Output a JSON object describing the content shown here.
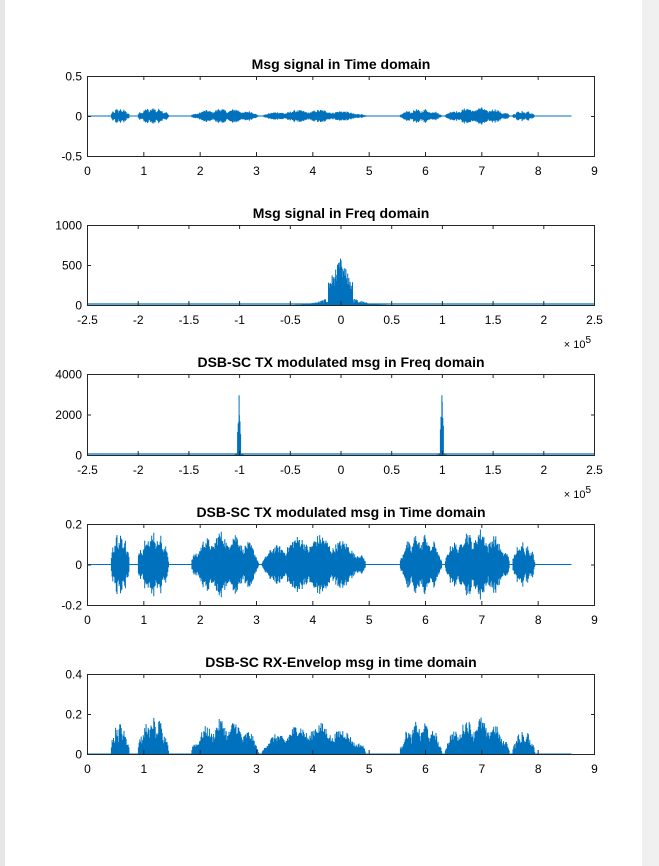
{
  "style": {
    "trace_color": "#0072bd",
    "axes_color": "#262626"
  },
  "chart_data": [
    {
      "type": "line",
      "title": "Msg signal in Time domain",
      "xlim": [
        0,
        9
      ],
      "ylim": [
        -0.5,
        0.5
      ],
      "xticks": [
        "0",
        "1",
        "2",
        "3",
        "4",
        "5",
        "6",
        "7",
        "8",
        "9"
      ],
      "yticks": [
        "-0.5",
        "0",
        "0.5"
      ],
      "x_multiplier": "",
      "signal": {
        "kind": "envelope_bipolar",
        "x_end": 8.6,
        "segments": [
          {
            "x": [
              0.42,
              0.75
            ],
            "amp": 0.1
          },
          {
            "x": [
              0.9,
              1.45
            ],
            "amp": 0.11
          },
          {
            "x": [
              1.85,
              3.05
            ],
            "amp": 0.095
          },
          {
            "x": [
              3.1,
              4.95
            ],
            "amp": 0.08
          },
          {
            "x": [
              5.55,
              6.3
            ],
            "amp": 0.09
          },
          {
            "x": [
              6.35,
              7.5
            ],
            "amp": 0.11
          },
          {
            "x": [
              7.55,
              7.95
            ],
            "amp": 0.07
          }
        ]
      }
    },
    {
      "type": "line",
      "title": "Msg signal in Freq domain",
      "xlim": [
        -2.5,
        2.5
      ],
      "ylim": [
        0,
        1000
      ],
      "xticks": [
        "-2.5",
        "-2",
        "-1.5",
        "-1",
        "-0.5",
        "0",
        "0.5",
        "1",
        "1.5",
        "2",
        "2.5"
      ],
      "yticks": [
        "0",
        "500",
        "1000"
      ],
      "x_multiplier": "× 10",
      "x_exponent": "5",
      "signal": {
        "kind": "spectrum",
        "lines": [
          {
            "center": 0.0,
            "peak": 580,
            "width": 0.12,
            "base": 120,
            "spread": 0.45
          }
        ]
      }
    },
    {
      "type": "line",
      "title": "DSB-SC TX modulated msg in Freq domain",
      "xlim": [
        -2.5,
        2.5
      ],
      "ylim": [
        0,
        4000
      ],
      "xticks": [
        "-2.5",
        "-2",
        "-1.5",
        "-1",
        "-0.5",
        "0",
        "0.5",
        "1",
        "1.5",
        "2",
        "2.5"
      ],
      "yticks": [
        "0",
        "2000",
        "4000"
      ],
      "x_multiplier": "× 10",
      "x_exponent": "5",
      "signal": {
        "kind": "spectrum",
        "lines": [
          {
            "center": -1.0,
            "peak": 2950,
            "width": 0.02,
            "base": 300,
            "spread": 0.05
          },
          {
            "center": 1.0,
            "peak": 2950,
            "width": 0.02,
            "base": 300,
            "spread": 0.05
          }
        ]
      }
    },
    {
      "type": "line",
      "title": "DSB-SC TX modulated msg in Time domain",
      "xlim": [
        0,
        9
      ],
      "ylim": [
        -0.2,
        0.2
      ],
      "xticks": [
        "0",
        "1",
        "2",
        "3",
        "4",
        "5",
        "6",
        "7",
        "8",
        "9"
      ],
      "yticks": [
        "-0.2",
        "0",
        "0.2"
      ],
      "x_multiplier": "",
      "signal": {
        "kind": "envelope_bipolar",
        "x_end": 8.6,
        "segments": [
          {
            "x": [
              0.42,
              0.75
            ],
            "amp": 0.17
          },
          {
            "x": [
              0.9,
              1.45
            ],
            "amp": 0.18
          },
          {
            "x": [
              1.85,
              3.05
            ],
            "amp": 0.17
          },
          {
            "x": [
              3.1,
              4.95
            ],
            "amp": 0.15
          },
          {
            "x": [
              5.55,
              6.3
            ],
            "amp": 0.16
          },
          {
            "x": [
              6.35,
              7.5
            ],
            "amp": 0.18
          },
          {
            "x": [
              7.55,
              7.95
            ],
            "amp": 0.12
          }
        ]
      }
    },
    {
      "type": "line",
      "title": "DSB-SC RX-Envelop msg in time domain",
      "xlim": [
        0,
        9
      ],
      "ylim": [
        0,
        0.4
      ],
      "xticks": [
        "0",
        "1",
        "2",
        "3",
        "4",
        "5",
        "6",
        "7",
        "8",
        "9"
      ],
      "yticks": [
        "0",
        "0.2",
        "0.4"
      ],
      "x_multiplier": "",
      "signal": {
        "kind": "envelope_positive",
        "x_end": 8.6,
        "segments": [
          {
            "x": [
              0.42,
              0.75
            ],
            "amp": 0.17
          },
          {
            "x": [
              0.9,
              1.45
            ],
            "amp": 0.19
          },
          {
            "x": [
              1.85,
              3.05
            ],
            "amp": 0.18
          },
          {
            "x": [
              3.1,
              4.95
            ],
            "amp": 0.16
          },
          {
            "x": [
              5.55,
              6.3
            ],
            "amp": 0.17
          },
          {
            "x": [
              6.35,
              7.5
            ],
            "amp": 0.19
          },
          {
            "x": [
              7.55,
              7.95
            ],
            "amp": 0.12
          }
        ]
      }
    }
  ]
}
